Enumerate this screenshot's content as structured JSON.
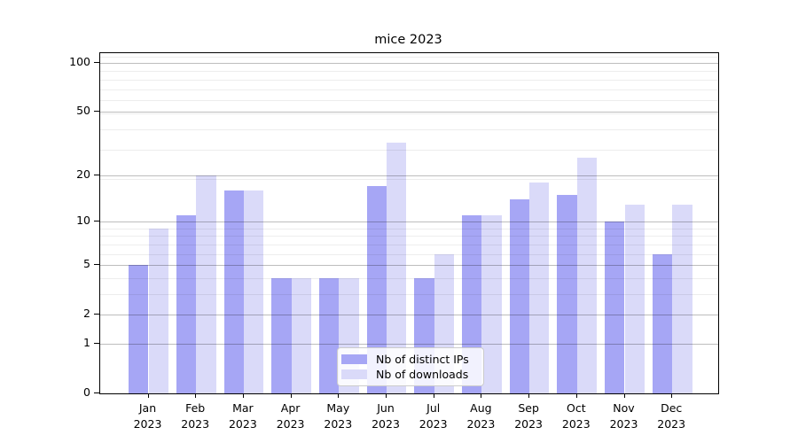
{
  "chart_data": {
    "type": "bar",
    "title": "mice 2023",
    "months": [
      "Jan",
      "Feb",
      "Mar",
      "Apr",
      "May",
      "Jun",
      "Jul",
      "Aug",
      "Sep",
      "Oct",
      "Nov",
      "Dec"
    ],
    "year": "2023",
    "categories": [
      "Jan 2023",
      "Feb 2023",
      "Mar 2023",
      "Apr 2023",
      "May 2023",
      "Jun 2023",
      "Jul 2023",
      "Aug 2023",
      "Sep 2023",
      "Oct 2023",
      "Nov 2023",
      "Dec 2023"
    ],
    "series": [
      {
        "name": "Nb of distinct IPs",
        "color": "#a6a6f5",
        "values": [
          5,
          11,
          16,
          4,
          4,
          17,
          4,
          11,
          14,
          15,
          10,
          6
        ]
      },
      {
        "name": "Nb of downloads",
        "color": "#dadaf9",
        "values": [
          9,
          20,
          16,
          4,
          4,
          32,
          6,
          11,
          18,
          26,
          13,
          13
        ]
      }
    ],
    "xlabel": "",
    "ylabel": "",
    "yscale": "log(value+1)",
    "ylim": [
      0,
      115
    ],
    "y_ticks_labeled": [
      0,
      1,
      2,
      5,
      10,
      20,
      50,
      100
    ],
    "y_tick_labels_top_to_bottom": [
      "100",
      "50",
      "20",
      "10",
      "5",
      "2",
      "1",
      "0"
    ],
    "y_minor_gridlines": [
      3,
      4,
      6,
      7,
      8,
      9,
      19,
      29,
      39,
      49,
      59,
      69,
      79,
      89,
      109
    ],
    "y_major_gridlines": [
      1,
      2,
      5,
      10,
      20,
      50,
      100
    ],
    "grid": "both, drawn over bars",
    "legend_position": "lower center"
  }
}
